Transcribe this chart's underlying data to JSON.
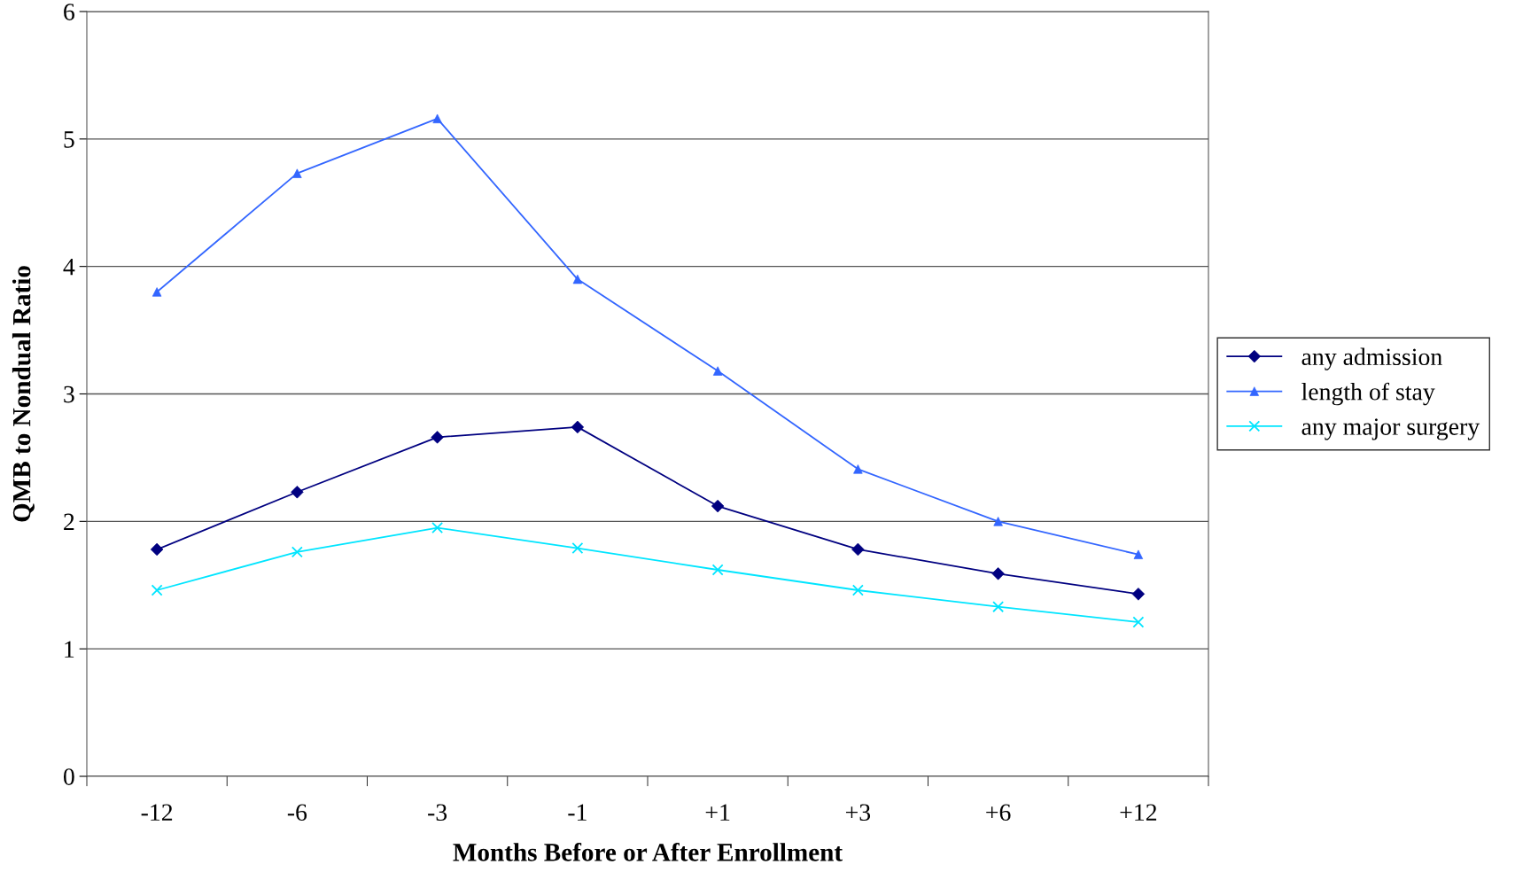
{
  "chart_data": {
    "type": "line",
    "xlabel": "Months Before or After Enrollment",
    "ylabel": "QMB to Nondual Ratio",
    "categories": [
      "-12",
      "-6",
      "-3",
      "-1",
      "+1",
      "+3",
      "+6",
      "+12"
    ],
    "series": [
      {
        "name": "any admission",
        "color": "#000080",
        "marker": "diamond",
        "values": [
          1.78,
          2.23,
          2.66,
          2.74,
          2.12,
          1.78,
          1.59,
          1.43
        ]
      },
      {
        "name": "length of stay",
        "color": "#3366ff",
        "marker": "triangle",
        "values": [
          3.8,
          4.73,
          5.16,
          3.9,
          3.18,
          2.41,
          2.0,
          1.74
        ]
      },
      {
        "name": "any major surgery",
        "color": "#00e5ff",
        "marker": "cross",
        "values": [
          1.46,
          1.76,
          1.95,
          1.79,
          1.62,
          1.46,
          1.33,
          1.21
        ]
      }
    ],
    "ylim": [
      0,
      6
    ],
    "yticks": [
      0,
      1,
      2,
      3,
      4,
      5,
      6
    ],
    "grid": "y",
    "legend": "right",
    "line_style": "solid"
  }
}
